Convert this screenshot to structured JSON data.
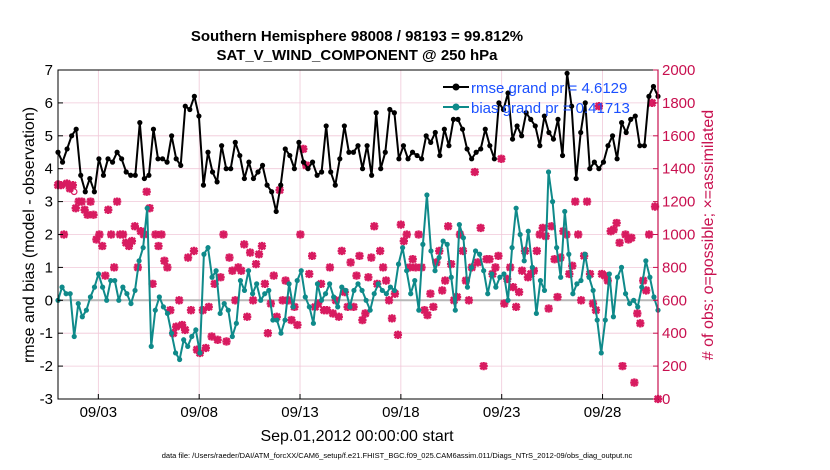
{
  "chart_data": {
    "type": "line",
    "title": "Southern Hemisphere 98008 / 98193 = 99.812%",
    "subtitle": "SAT_V_WIND_COMPONENT @ 250 hPa",
    "xlabel": "Sep.01,2012 00:00:00 start",
    "ylabel": "rmse and bias (model - observation)",
    "ylabel_right": "# of obs: o=possible; ×=assimilated",
    "footer": "data file: /Users/raeder/DAI/ATM_forcXX/CAM6_setup/f.e21.FHIST_BGC.f09_025.CAM6assim.011/Diags_NTrS_2012-09/obs_diag_output.nc",
    "xlim": [
      1.0,
      30.75
    ],
    "ylim": [
      -3,
      7
    ],
    "ylim_right": [
      0,
      2000
    ],
    "x_ticks": [
      3,
      8,
      13,
      18,
      23,
      28
    ],
    "x_tick_labels": [
      "09/03",
      "09/08",
      "09/13",
      "09/18",
      "09/23",
      "09/28"
    ],
    "y_ticks": [
      "-3",
      "-2",
      "-1",
      "0",
      "1",
      "2",
      "3",
      "4",
      "5",
      "6",
      "7"
    ],
    "y_ticks_right": [
      "0",
      "200",
      "400",
      "600",
      "800",
      "1000",
      "1200",
      "1400",
      "1600",
      "1800",
      "2000"
    ],
    "legend": [
      "rmse grand pr = 4.6129",
      "bias grand pr = 0.41713"
    ],
    "legend_position": "top-right",
    "grid": true,
    "colors": {
      "rmse": "#000000",
      "bias": "#0f8a8a",
      "obs": "#d81b60",
      "right_axis": "#c8104f",
      "legend_text": "#1a4fff",
      "zero_line": "#b8b8b8",
      "grid": "#f0c8d8"
    },
    "rmse": [
      4.5,
      4.2,
      4.6,
      5.0,
      5.2,
      3.8,
      3.3,
      3.7,
      3.3,
      4.3,
      3.8,
      4.3,
      4.2,
      4.5,
      4.3,
      3.9,
      3.8,
      3.8,
      5.4,
      3.7,
      3.8,
      5.2,
      4.3,
      4.3,
      4.2,
      5.0,
      4.3,
      4.1,
      5.9,
      5.8,
      6.2,
      5.6,
      3.5,
      4.5,
      3.9,
      3.6,
      4.7,
      4.0,
      4.0,
      4.8,
      4.4,
      3.7,
      4.2,
      3.7,
      3.9,
      4.1,
      3.5,
      3.3,
      2.7,
      3.5,
      4.6,
      4.4,
      4.0,
      4.8,
      4.2,
      4.0,
      4.2,
      3.8,
      3.9,
      5.3,
      3.9,
      3.5,
      4.3,
      5.3,
      4.5,
      4.5,
      4.7,
      4.0,
      4.7,
      3.8,
      5.7,
      4.0,
      4.5,
      5.8,
      5.7,
      4.3,
      4.7,
      4.3,
      4.5,
      4.4,
      4.3,
      5.0,
      4.8,
      5.1,
      4.4,
      5.2,
      4.7,
      5.5,
      5.5,
      5.2,
      4.6,
      4.3,
      4.5,
      4.6,
      5.2,
      4.7,
      4.3,
      6.0,
      5.8,
      6.3,
      4.9,
      5.3,
      5.0,
      5.7,
      5.5,
      5.3,
      4.7,
      5.6,
      5.1,
      4.9,
      5.5,
      4.4,
      6.9,
      5.9,
      3.7,
      5.1,
      6.0,
      4.0,
      4.2,
      4.0,
      4.2,
      4.7,
      5.0,
      4.3,
      5.4,
      5.1,
      5.5,
      5.6,
      4.7,
      4.7,
      6.2,
      6.5,
      6.2
    ],
    "bias": [
      0.0,
      0.4,
      0.2,
      0.2,
      -1.1,
      -0.1,
      -0.5,
      -0.3,
      0.1,
      0.4,
      0.8,
      0.4,
      0.0,
      0.6,
      0.6,
      0.0,
      0.4,
      0.2,
      -0.1,
      0.3,
      1.2,
      1.6,
      2.8,
      -1.4,
      -0.3,
      0.1,
      -0.2,
      -0.4,
      -1.0,
      -1.6,
      -1.8,
      -1.2,
      -1.4,
      -1.1,
      -0.9,
      -1.6,
      1.4,
      1.6,
      0.7,
      0.9,
      -0.4,
      -0.1,
      -0.3,
      -1.1,
      -0.7,
      0.6,
      0.3,
      0.9,
      0.2,
      0.5,
      0.0,
      0.2,
      0.3,
      -0.6,
      -0.6,
      -1.0,
      -0.6,
      0.5,
      -0.2,
      0.6,
      0.9,
      0.1,
      -0.2,
      -0.7,
      0.5,
      0.0,
      0.2,
      0.5,
      0.1,
      -0.2,
      0.4,
      0.3,
      -0.2,
      0.3,
      0.5,
      0.3,
      0.0,
      -0.3,
      0.2,
      0.5,
      0.3,
      0.2,
      0.4,
      0.3,
      1.1,
      1.6,
      0.9,
      0.2,
      0.6,
      -0.3,
      1.7,
      3.2,
      1.5,
      0.9,
      1.3,
      1.8,
      1.7,
      0.7,
      -0.3,
      2.3,
      1.9,
      0.4,
      1.0,
      1.5,
      1.4,
      0.9,
      0.2,
      0.8,
      0.4,
      0.7,
      0.8,
      0.0,
      1.6,
      2.8,
      2.0,
      1.2,
      2.1,
      1.0,
      -0.4,
      0.6,
      0.3,
      3.9,
      3.0,
      1.6,
      0.7,
      2.7,
      1.4,
      0.2,
      0.5,
      0.6,
      1.4,
      0.7,
      0.3,
      -0.6,
      -1.6,
      -0.6,
      0.8,
      -0.5,
      0.7,
      1.0,
      0.2,
      -0.1,
      0.0,
      -0.2,
      0.4,
      1.2,
      0.7,
      0.1,
      -0.3
    ],
    "obs_assimilated": [
      1300,
      1300,
      1000,
      1310,
      1280,
      1300,
      1160,
      1200,
      1200,
      1150,
      1120,
      1200,
      1120,
      970,
      1000,
      930,
      750,
      1150,
      1000,
      800,
      1200,
      1000,
      1000,
      950,
      930,
      960,
      1050,
      800,
      1020,
      1000,
      1260,
      1160,
      700,
      1000,
      930,
      1000,
      840,
      800,
      540,
      400,
      440,
      600,
      450,
      420,
      860,
      540,
      900,
      300,
      280,
      540,
      310,
      560,
      380,
      700,
      360,
      740,
      1000,
      350,
      860,
      780,
      600,
      800,
      780,
      940,
      500,
      890,
      600,
      820,
      880,
      930,
      700,
      400,
      580,
      750,
      500,
      1270,
      600,
      720,
      600,
      480,
      560,
      450,
      1000,
      1520,
      1420,
      760,
      870,
      560,
      580,
      700,
      540,
      540,
      800,
      520,
      600,
      500,
      900,
      650,
      560,
      830,
      560,
      750,
      870,
      480,
      520,
      740,
      860,
      1050,
      700,
      900,
      800,
      720,
      600,
      490,
      640,
      390,
      1060,
      960,
      1000,
      800,
      850,
      800,
      1000,
      800,
      540,
      510,
      640,
      560,
      830,
      900,
      660,
      720,
      1050,
      820,
      600,
      620,
      1000,
      900,
      720,
      600,
      800,
      1380,
      830,
      1040,
      200,
      850,
      850,
      760,
      800,
      870,
      1460,
      580,
      730,
      800,
      680,
      560,
      650,
      780,
      900,
      740,
      760,
      780,
      900,
      1000,
      1040,
      990,
      550,
      1050,
      850,
      620,
      860,
      1020,
      1000,
      760,
      810,
      1200,
      1000,
      600,
      870,
      1200,
      760,
      580,
      540,
      1780,
      760,
      750,
      720,
      1020,
      1030,
      1070,
      950,
      200,
      1000,
      970,
      980,
      100,
      520,
      460,
      720,
      660,
      1000,
      1800,
      1170,
      0
    ],
    "obs_possible_marker": [
      {
        "x": 1.0,
        "y": 1310
      },
      {
        "x": 1.8,
        "y": 1260
      }
    ]
  }
}
